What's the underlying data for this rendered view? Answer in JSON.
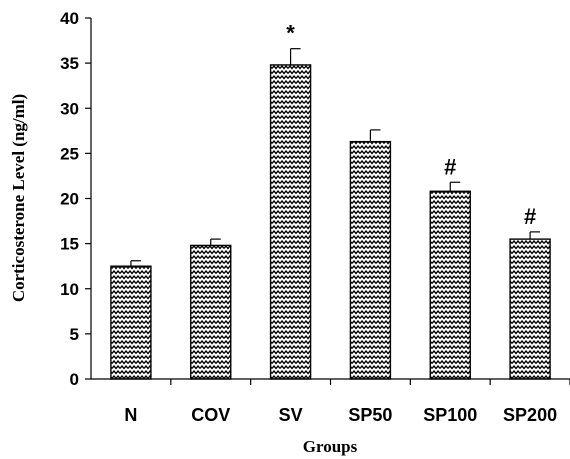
{
  "chart_data": {
    "type": "bar",
    "title": "",
    "xlabel": "Groups",
    "ylabel": "Corticosterone Level (ng/ml)",
    "ylim": [
      0,
      40
    ],
    "yticks": [
      0,
      5,
      10,
      15,
      20,
      25,
      30,
      35,
      40
    ],
    "categories": [
      "N",
      "COV",
      "SV",
      "SP50",
      "SP100",
      "SP200"
    ],
    "values": [
      12.5,
      14.8,
      34.8,
      26.3,
      20.8,
      15.5
    ],
    "errors": [
      0.6,
      0.7,
      1.8,
      1.3,
      1.0,
      0.8
    ],
    "annotations": [
      "",
      "",
      "*",
      "",
      "#",
      "#"
    ],
    "grid": false,
    "legend": "none",
    "bar_pattern": "zigzag",
    "bar_color": "#000000"
  }
}
